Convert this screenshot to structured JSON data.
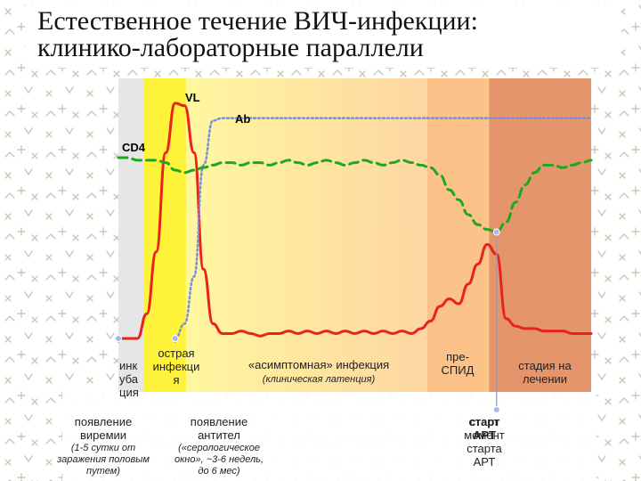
{
  "title": {
    "line1": "Естественное течение ВИЧ-инфекции:",
    "line2": "клинико-лабораторные параллели"
  },
  "series_labels": {
    "vl": "VL",
    "ab": "Ab",
    "cd4": "CD4"
  },
  "colors": {
    "vl": "#e8231d",
    "ab": "#7b8fd8",
    "cd4": "#1ea81e",
    "incubation": "#e6e6e6",
    "acute": "#fff23a",
    "asympt_start": "#fff7a0",
    "asympt_end": "#fdd6a2",
    "preaids": "#fbc28a",
    "treatment": "#e5956b",
    "pattern": "#c9c9b0"
  },
  "stages": {
    "incubation": [
      "инк",
      "уба",
      "ция"
    ],
    "acute": [
      "острая",
      "инфекци",
      "я"
    ],
    "asymptomatic": "«асимптомная» инфекция",
    "latency": "(клиническая латенция)",
    "preaids": [
      "пре-",
      "СПИД"
    ],
    "treatment": [
      "стадия на",
      "лечении"
    ]
  },
  "events": {
    "viremia": {
      "label": [
        "появление",
        "виремии"
      ],
      "note": [
        "(1-5 сутки от",
        "заражения половым",
        "путем)"
      ]
    },
    "antibodies": {
      "label": [
        "появление",
        "антител"
      ],
      "note": [
        "(«серологическое",
        "окно», ~3-6 недель,",
        "до 6 мес)"
      ]
    },
    "art_overlay": [
      "старт",
      "АРТ"
    ],
    "art": [
      "старт",
      "момент",
      "старта",
      "АРТ"
    ]
  },
  "chart_data": {
    "type": "line",
    "title": "",
    "xlabel": "",
    "ylabel": "",
    "x": [
      0,
      2,
      4,
      6,
      8,
      10,
      12,
      14,
      16,
      18,
      20,
      22,
      24,
      26,
      28,
      30,
      32,
      34,
      36,
      38,
      40,
      42,
      44,
      46,
      48,
      50,
      52,
      54,
      56,
      58,
      60,
      62,
      64,
      66,
      68,
      70,
      72,
      74,
      76,
      78,
      80,
      82,
      84,
      86,
      88,
      90,
      92,
      94,
      96,
      98,
      100
    ],
    "xlim": [
      0,
      100
    ],
    "ylim": [
      0,
      100
    ],
    "stage_bounds": [
      0,
      5.3,
      14.3,
      65.3,
      78.4,
      100
    ],
    "series": [
      {
        "key": "vl",
        "values": [
          0,
          0,
          0,
          10,
          35,
          75,
          95,
          94,
          75,
          28,
          6,
          2,
          2,
          3,
          2,
          1,
          2,
          2,
          3,
          2,
          3,
          2,
          3,
          2,
          3,
          2,
          3,
          2,
          3,
          2,
          3,
          2,
          4,
          7,
          13,
          16,
          14,
          22,
          30,
          38,
          34,
          8,
          5,
          4,
          4,
          3,
          3,
          3,
          2,
          2,
          2
        ]
      },
      {
        "key": "ab",
        "values": [
          null,
          null,
          null,
          null,
          null,
          null,
          0,
          6,
          25,
          70,
          88,
          89,
          89,
          89,
          89,
          89,
          89,
          89,
          89,
          89,
          89,
          89,
          89,
          89,
          89,
          89,
          89,
          89,
          89,
          89,
          89,
          89,
          89,
          89,
          89,
          89,
          89,
          89,
          89,
          89,
          89,
          89,
          89,
          89,
          89,
          89,
          89,
          89,
          89,
          89,
          89
        ]
      },
      {
        "key": "cd4",
        "values": [
          73,
          73,
          72,
          72,
          72,
          71,
          68,
          67,
          68,
          69,
          70,
          71,
          71,
          70,
          71,
          71,
          70,
          71,
          72,
          71,
          70,
          71,
          72,
          71,
          70,
          71,
          72,
          71,
          70,
          71,
          72,
          71,
          70,
          69,
          66,
          60,
          56,
          50,
          46,
          44,
          43,
          47,
          55,
          62,
          67,
          70,
          70,
          69,
          70,
          71,
          72
        ]
      }
    ],
    "markers": [
      {
        "series": "vl",
        "x": 0
      },
      {
        "series": "ab",
        "x": 12
      },
      {
        "series": "cd4",
        "x": 80
      }
    ],
    "art_x": 80
  }
}
